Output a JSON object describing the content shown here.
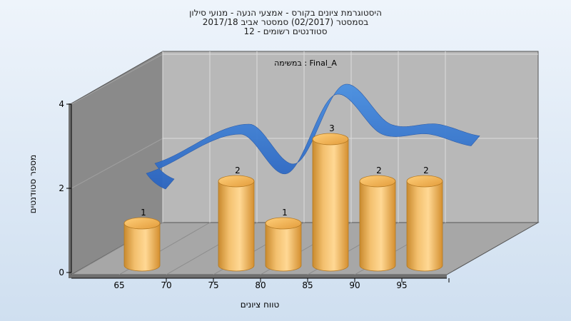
{
  "chart_data": {
    "type": "bar",
    "title_lines": [
      "היסטוגרמת ציונים בקורס - אמצעי הנעה - מנועי סילון",
      "בסמסטר  (02/2017)  סמסטר אביב 2017/18",
      "סטודנטים רשומים - 12"
    ],
    "annotation": "במשימה : Final_A",
    "xlabel": "טווח ציונים",
    "ylabel": "מספר סטודנטים",
    "x_ticks": [
      "65",
      "70",
      "75",
      "80",
      "85",
      "90",
      "95"
    ],
    "y_ticks": [
      "0",
      "2",
      "4"
    ],
    "ylim": [
      0,
      4
    ],
    "categories": [
      "65",
      "75",
      "80",
      "85",
      "90",
      "95"
    ],
    "values": [
      1,
      2,
      1,
      3,
      2,
      2
    ],
    "data_labels": [
      "1",
      "2",
      "1",
      "3",
      "2",
      "2"
    ],
    "curve_type": "smoothed distribution ribbon",
    "grid": true,
    "colors": {
      "bar": "#f0ad4e",
      "curve": "#3a7bd5",
      "back_wall": "#b8b8b8",
      "side_wall": "#8a8a8a",
      "floor": "#a9a9a9"
    }
  }
}
